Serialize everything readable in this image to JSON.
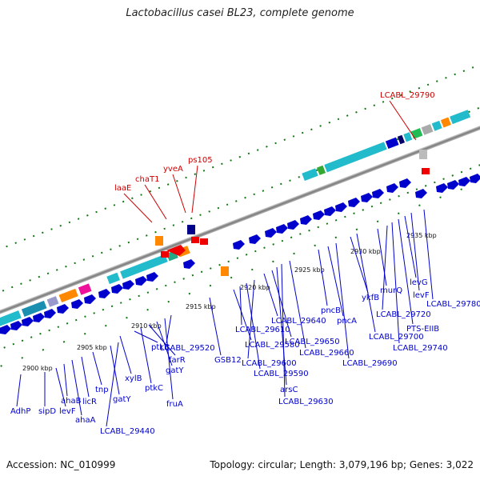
{
  "title": "Lactobacillus casei BL23, complete genome",
  "footer": {
    "accession": "Accession: NC_010999",
    "topology": "Topology: circular; Length: 3,079,196 bp; Genes: 3,022"
  },
  "tick_labels": [
    "2900 kbp",
    "2905 kbp",
    "2910 kbp",
    "2915 kbp",
    "2920 kbp",
    "2925 kbp",
    "2930 kbp",
    "2935 kbp"
  ],
  "red_labels": [
    "laaE",
    "chaT1",
    "yveA",
    "ps105",
    "LCABL_29790"
  ],
  "blue_labels": [
    "AdhP",
    "sipD",
    "levF",
    "ahaB",
    "ahaA",
    "licR",
    "tnp",
    "gatY",
    "LCABL_29440",
    "xylB",
    "ptkB",
    "ptkC",
    "farR",
    "gatY",
    "fruA",
    "LCABL_29520",
    "GSB12",
    "LCABL_29580",
    "LCABL_29610",
    "LCABL_29590",
    "LCABL_29600",
    "LCABL_29640",
    "LCABL_29650",
    "arsC",
    "LCABL_29630",
    "LCABL_29660",
    "pncB",
    "pncA",
    "LCABL_29690",
    "ykfB",
    "LCABL_29700",
    "murQ",
    "LCABL_29720",
    "LCABL_29740",
    "PTS-EIIB",
    "levG",
    "levF",
    "LCABL_29780"
  ]
}
